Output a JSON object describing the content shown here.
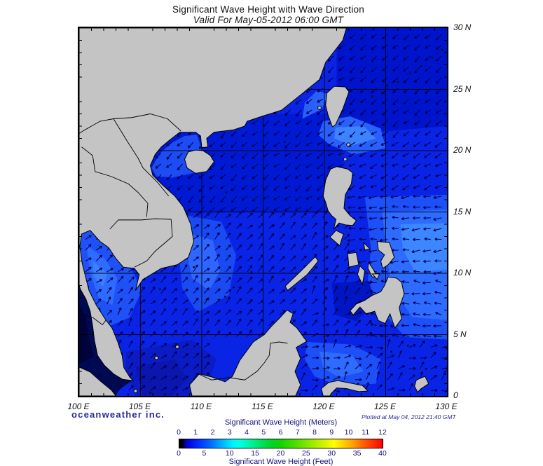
{
  "header": {
    "title": "Significant Wave Height with Wave Direction",
    "valid_time": "Valid For May-05-2012 06:00 GMT"
  },
  "branding": {
    "logo_text": "oceanweather inc.",
    "plotted": "Plotted at May 04, 2012 21:40 GMT"
  },
  "legend": {
    "title_meters": "Significant Wave Height (Meters)",
    "title_feet": "Significant Wave Height (Feet)",
    "ticks_meters": [
      "0",
      "1",
      "2",
      "3",
      "4",
      "5",
      "6",
      "7",
      "8",
      "9",
      "10",
      "11",
      "12"
    ],
    "ticks_feet": [
      "0",
      "5",
      "10",
      "15",
      "20",
      "25",
      "30",
      "35",
      "40"
    ]
  },
  "chart_data": {
    "type": "map",
    "title": "Significant Wave Height with Wave Direction",
    "valid_time": "May-05-2012 06:00 GMT",
    "plotted_time": "May 04, 2012 21:40 GMT",
    "extent": {
      "lon_min": 100,
      "lon_max": 130,
      "lat_min": 0,
      "lat_max": 30
    },
    "grid_interval_deg": 5,
    "x_ticks": [
      "100 E",
      "105 E",
      "110 E",
      "115 E",
      "120 E",
      "125 E",
      "130 E"
    ],
    "y_ticks": [
      "30 N",
      "25 N",
      "20 N",
      "15 N",
      "10 N",
      "5 N",
      "0"
    ],
    "colors": {
      "land": "#c4c4c4",
      "coast": "#000000",
      "sea_base": "#0a24e6",
      "grid": "#000000",
      "arrow": "#000058",
      "frame": "#000000",
      "navy_text": "#12127a"
    },
    "colorbar": {
      "meters_range": [
        0,
        12
      ],
      "feet_range": [
        0,
        40
      ],
      "stops": [
        "#000000",
        "#0000bb",
        "#0033ff",
        "#0099ff",
        "#00eeff",
        "#00ee88",
        "#11d400",
        "#77e600",
        "#ffff00",
        "#ff9900",
        "#ff3300",
        "#ff0000"
      ]
    },
    "sea_patches": [
      {
        "c": "#0014cc",
        "p": [
          121,
          30,
          130,
          30,
          130,
          22,
          124,
          21.5,
          121,
          23
        ]
      },
      {
        "c": "#001ad4",
        "p": [
          105,
          15,
          121.5,
          15,
          121.5,
          23,
          105,
          23
        ]
      },
      {
        "c": "#1c4cf2",
        "p": [
          105.9,
          18.6,
          106.6,
          19.8,
          107.5,
          20.6,
          108.6,
          21.2,
          109.6,
          21.3,
          109.9,
          20.4,
          110.3,
          19.0,
          109.4,
          18.2,
          107.6,
          17.8,
          106.3,
          17.9
        ]
      },
      {
        "c": "#1a4af2",
        "p": [
          108.3,
          14.8,
          111.6,
          14.2,
          112.8,
          11.5,
          112.2,
          8.2,
          109.6,
          6.8,
          108.4,
          8.8,
          108.1,
          12
        ]
      },
      {
        "c": "#2e66ff",
        "p": [
          109.2,
          13.2,
          110.9,
          12.7,
          111.5,
          10.2,
          110.6,
          8.6,
          109.2,
          9.6,
          108.8,
          11.6
        ]
      },
      {
        "c": "#1e52f6",
        "p": [
          100,
          13.3,
          100.9,
          13.5,
          102.3,
          12.5,
          103.4,
          11.1,
          104.4,
          10.1,
          105.1,
          8.6,
          104.1,
          6.4,
          102.5,
          5.7,
          101.5,
          6.9,
          100.8,
          8.6,
          100.2,
          10.6,
          100,
          11.6
        ]
      },
      {
        "c": "#2e6bff",
        "p": [
          100.6,
          12.3,
          102.1,
          11.2,
          103.1,
          9.6,
          102.7,
          7.4,
          101.6,
          8.0,
          100.9,
          10.0
        ]
      },
      {
        "c": "#3c80ff",
        "p": [
          101.1,
          11.0,
          102.3,
          10.0,
          101.95,
          8.9,
          101.2,
          9.7
        ]
      },
      {
        "c": "#2a60fa",
        "p": [
          119.9,
          22.4,
          122.1,
          22.8,
          124.6,
          21.8,
          125.0,
          20.2,
          122.4,
          19.7,
          120.4,
          20.5,
          119.5,
          21.3
        ]
      },
      {
        "c": "#3c83ff",
        "p": [
          120.9,
          21.9,
          123.2,
          22.0,
          124.2,
          21.0,
          122.2,
          20.4,
          120.8,
          21.0
        ]
      },
      {
        "c": "#2a60fa",
        "p": [
          118.2,
          22.6,
          119.8,
          23.4,
          120.3,
          24.6,
          119.4,
          24.9,
          118.4,
          23.9
        ]
      },
      {
        "c": "#1d50f6",
        "p": [
          123.3,
          16.2,
          130,
          16.4,
          130,
          4.6,
          126.6,
          4.8,
          124.6,
          7.0,
          123.5,
          9.0,
          123.8,
          12.0
        ]
      },
      {
        "c": "#2e6bff",
        "p": [
          124.7,
          15.0,
          130,
          15.2,
          130,
          6.2,
          127.2,
          6.4,
          125.4,
          9.0,
          125.0,
          12.5
        ]
      },
      {
        "c": "#3c86ff",
        "p": [
          126.2,
          14.0,
          130,
          14.1,
          130,
          10.3,
          127.4,
          10.1,
          126.4,
          11.9
        ]
      },
      {
        "c": "#1d50f6",
        "p": [
          118.6,
          4.4,
          122.2,
          4.2,
          124.6,
          3.0,
          124.2,
          1.0,
          121.2,
          0.8,
          119.2,
          1.6,
          118.4,
          3.0
        ]
      },
      {
        "c": "#2e6bff",
        "p": [
          119.6,
          3.6,
          122.2,
          3.4,
          123.2,
          2.0,
          121.2,
          1.5,
          119.9,
          2.3
        ]
      },
      {
        "c": "#0016c2",
        "p": [
          120.6,
          9.2,
          123.6,
          9.4,
          124.2,
          7.6,
          122.6,
          6.1,
          120.9,
          6.6
        ]
      },
      {
        "c": "#0b1cc4",
        "p": [
          103.8,
          3.6,
          109.2,
          4.6,
          111.2,
          3.0,
          110.2,
          0,
          104.6,
          0,
          103.8,
          1.9
        ]
      },
      {
        "c": "#0a16ae",
        "p": [
          104.6,
          2.4,
          107.8,
          3.0,
          108.8,
          1.4,
          107.6,
          0,
          105.2,
          0
        ]
      },
      {
        "c": "#000a52",
        "p": [
          100,
          8.8,
          100.6,
          7.9,
          101.1,
          6.5,
          101.3,
          5.1,
          101.6,
          3.7,
          102.3,
          2.5,
          103.3,
          1.5,
          104.3,
          1.25,
          103.4,
          0.6,
          102.9,
          0,
          100,
          0
        ]
      },
      {
        "c": "#000338",
        "p": [
          100,
          7.5,
          100.5,
          6.5,
          100.8,
          4.8,
          101.2,
          3.2,
          100,
          2.6
        ]
      }
    ],
    "land": [
      [
        100,
        30,
        121.8,
        30,
        121.5,
        29.0,
        120.1,
        27.2,
        119.6,
        25.8,
        118.0,
        24.5,
        116.5,
        23.3,
        114.9,
        22.8,
        113.7,
        22.4,
        113.5,
        22.0,
        112.6,
        21.7,
        111.0,
        21.5,
        110.4,
        21.0,
        110.5,
        20.3,
        110.0,
        20.25,
        109.9,
        21.2,
        109.5,
        21.5,
        108.2,
        21.5,
        107.3,
        20.8,
        106.7,
        20.3,
        106.2,
        19.7,
        105.8,
        18.8,
        106.0,
        18.0,
        106.8,
        17.2,
        107.8,
        16.3,
        108.5,
        15.4,
        109.1,
        14.0,
        109.35,
        12.6,
        108.9,
        11.3,
        108.0,
        10.7,
        106.7,
        10.4,
        105.2,
        9.5,
        104.6,
        8.6,
        104.9,
        9.9,
        104.5,
        10.4,
        103.6,
        10.5,
        103.0,
        11.2,
        102.4,
        12.1,
        101.7,
        12.6,
        100.9,
        13.5,
        100.2,
        13.2,
        100.05,
        12.2,
        100.25,
        10.8,
        100.55,
        9.6,
        100.8,
        8.6,
        101.4,
        7.4,
        102.1,
        6.3,
        102.7,
        5.5,
        103.15,
        4.4,
        103.5,
        3.3,
        103.65,
        2.3,
        104.15,
        1.5,
        104.4,
        1.25,
        103.55,
        1.35,
        102.8,
        1.8,
        102.05,
        2.5,
        101.5,
        3.3,
        101.25,
        4.5,
        101.1,
        5.7,
        100.9,
        6.9,
        100.55,
        7.9,
        100.1,
        8.7,
        100,
        9.0
      ],
      [
        108.6,
        19.3,
        108.9,
        19.9,
        109.5,
        20.05,
        110.1,
        20.0,
        110.7,
        19.6,
        111.0,
        19.1,
        110.4,
        18.3,
        109.5,
        18.15,
        108.8,
        18.6
      ],
      [
        120.1,
        23.7,
        120.2,
        24.7,
        120.8,
        25.25,
        121.7,
        25.2,
        122.0,
        24.8,
        121.5,
        23.4,
        120.9,
        22.1,
        120.65,
        21.95,
        120.3,
        22.9
      ],
      [
        119.9,
        16.3,
        120.1,
        17.6,
        120.5,
        18.5,
        121.0,
        18.7,
        121.9,
        18.5,
        122.3,
        18.2,
        122.2,
        17.3,
        121.7,
        16.4,
        121.6,
        15.3,
        122.1,
        14.7,
        122.6,
        14.3,
        122.3,
        13.9,
        121.7,
        13.95,
        121.2,
        14.1,
        120.75,
        13.6,
        120.95,
        14.4,
        120.6,
        14.7,
        120.3,
        15.1,
        120.1,
        15.8
      ],
      [
        120.95,
        13.5,
        121.55,
        13.2,
        121.25,
        12.25,
        120.45,
        12.95
      ],
      [
        117.0,
        8.6,
        118.6,
        9.9,
        119.5,
        11.0,
        119.25,
        11.35,
        118.2,
        10.3,
        116.8,
        8.95
      ],
      [
        121.9,
        11.6,
        122.6,
        11.7,
        122.8,
        10.7,
        122.0,
        10.5
      ],
      [
        122.9,
        10.6,
        123.3,
        10.2,
        123.1,
        9.1,
        122.7,
        9.9
      ],
      [
        123.6,
        10.9,
        124.0,
        10.3,
        124.3,
        9.7,
        123.9,
        9.7,
        123.55,
        10.4
      ],
      [
        123.9,
        9.95,
        124.5,
        9.95,
        124.3,
        9.5
      ],
      [
        123.2,
        12.5,
        123.7,
        12.0,
        123.3,
        11.9
      ],
      [
        124.3,
        12.6,
        125.3,
        12.5,
        125.7,
        11.3,
        125.2,
        10.7,
        124.75,
        10.4,
        124.6,
        11.0,
        124.9,
        11.5,
        124.4,
        11.9
      ],
      [
        122.1,
        6.95,
        122.6,
        7.5,
        123.3,
        7.8,
        123.9,
        8.2,
        124.6,
        8.5,
        124.9,
        9.0,
        125.2,
        9.7,
        125.9,
        9.6,
        126.3,
        9.25,
        126.5,
        8.3,
        126.1,
        7.2,
        126.3,
        6.3,
        125.75,
        5.55,
        125.35,
        6.7,
        124.95,
        5.9,
        124.4,
        6.15,
        124.1,
        6.9,
        123.4,
        6.7,
        122.9,
        7.25,
        122.35,
        6.6
      ],
      [
        109.2,
        0,
        109.0,
        0.9,
        109.8,
        1.8,
        110.8,
        1.55,
        111.9,
        1.15,
        112.5,
        1.6,
        113.1,
        2.9,
        114.2,
        4.4,
        115.1,
        5.0,
        115.7,
        5.7,
        116.3,
        6.3,
        116.95,
        7.0,
        117.45,
        6.7,
        117.2,
        6.0,
        117.75,
        5.55,
        118.55,
        4.45,
        117.7,
        3.95,
        118.05,
        3.05,
        117.6,
        2.0,
        118.05,
        0.9,
        117.65,
        0
      ],
      [
        100,
        2.35,
        100.9,
        1.95,
        101.8,
        1.15,
        102.6,
        0.5,
        103.0,
        0,
        100,
        0
      ],
      [
        119.9,
        0,
        119.75,
        0.6,
        120.35,
        1.1,
        121.1,
        1.25,
        122.1,
        1.05,
        123.1,
        0.85,
        123.55,
        0.4,
        122.8,
        0.35,
        121.8,
        0.6,
        121.0,
        0.65,
        120.55,
        0.2,
        120.45,
        0
      ],
      [
        127.5,
        1.3,
        128.2,
        1.6,
        128.5,
        1.0,
        127.9,
        0.6,
        127.6,
        0.3,
        127.35,
        0.8
      ]
    ],
    "borders": [
      [
        108.3,
        21.6,
        107.2,
        22.6,
        105.8,
        23.0,
        104.3,
        22.7,
        102.8,
        22.6,
        101.7,
        22.4,
        100.3,
        21.6,
        100,
        21.4
      ],
      [
        102.8,
        22.6,
        103.9,
        20.8,
        104.8,
        19.4,
        105.2,
        18.6,
        106.4,
        17.4,
        107.3,
        16.3
      ],
      [
        100.2,
        20.3,
        101.1,
        19.6,
        101.3,
        18.3,
        102.6,
        17.9,
        104.0,
        17.3,
        104.8,
        16.6,
        105.6,
        15.7,
        105.5,
        14.6
      ],
      [
        102.5,
        13.6,
        103.2,
        14.35,
        105.1,
        14.35,
        106.2,
        14.45,
        107.5,
        14.4
      ],
      [
        107.5,
        14.4,
        107.6,
        13.0,
        106.2,
        11.8,
        105.5,
        11.0,
        104.5,
        10.5
      ],
      [
        100.3,
        6.6,
        101.1,
        6.4,
        101.9,
        5.8,
        102.2,
        6.2
      ],
      [
        109.7,
        1.8,
        110.8,
        1.3,
        112.2,
        1.5,
        113.5,
        1.3,
        114.5,
        2.0,
        115.1,
        2.7,
        115.5,
        3.3,
        115.6,
        4.3,
        116.3,
        4.4,
        117.0,
        4.3
      ]
    ],
    "islets_gray": [
      [
        108.0,
        4.0
      ],
      [
        106.3,
        3.1
      ],
      [
        121.95,
        20.5
      ],
      [
        121.7,
        19.3
      ],
      [
        119.6,
        23.5
      ],
      [
        104.6,
        0.4
      ]
    ],
    "islets_black": [
      [
        125.1,
        25.3
      ],
      [
        126.0,
        25.6
      ],
      [
        127.0,
        26.3
      ],
      [
        127.9,
        26.9
      ],
      [
        128.8,
        27.6
      ],
      [
        129.6,
        28.2
      ],
      [
        123.9,
        24.4
      ],
      [
        124.7,
        24.7
      ],
      [
        112.0,
        16.6
      ],
      [
        116.75,
        20.7
      ],
      [
        111.9,
        8.1
      ],
      [
        112.6,
        8.85
      ],
      [
        110.4,
        7.85
      ],
      [
        114.05,
        10.1
      ],
      [
        109.35,
        10.5
      ],
      [
        106.6,
        8.7
      ],
      [
        115.8,
        9.7
      ],
      [
        113.9,
        7.6
      ],
      [
        126.8,
        4.1
      ],
      [
        125.45,
        3.6
      ],
      [
        128.3,
        2.2
      ],
      [
        102.5,
        1.2
      ],
      [
        103.3,
        0.9
      ],
      [
        103.9,
        1.05
      ],
      [
        105.8,
        0.25
      ]
    ],
    "wave_field": [
      {
        "b": [
          100,
          0,
          104.4,
          8.8
        ],
        "a": 55,
        "j": 18
      },
      {
        "b": [
          100,
          5.5,
          105.6,
          13.9
        ],
        "a": 38,
        "j": 14
      },
      {
        "b": [
          103,
          0,
          110.5,
          5.5
        ],
        "a": 42,
        "j": 16
      },
      {
        "b": [
          117.6,
          0,
          130,
          4.8
        ],
        "a": 32,
        "j": 45
      },
      {
        "b": [
          118.4,
          4.8,
          123.4,
          9.6
        ],
        "a": 40,
        "j": 35
      },
      {
        "b": [
          122.4,
          4.8,
          130,
          9.9
        ],
        "a": 172,
        "j": 14
      },
      {
        "b": [
          122.4,
          9.9,
          130,
          16.6
        ],
        "a": 184,
        "j": 10
      },
      {
        "b": [
          121.3,
          16.6,
          130,
          21.2
        ],
        "a": 207,
        "j": 12
      },
      {
        "b": [
          114,
          21.2,
          130,
          30
        ],
        "a": 220,
        "j": 12
      },
      {
        "b": [
          104,
          14.8,
          114,
          23.5
        ],
        "a": 224,
        "j": 12
      },
      {
        "b": [
          114,
          14.8,
          121.3,
          21.2
        ],
        "a": 216,
        "j": 12
      },
      {
        "b": [
          100,
          4.8,
          122.4,
          14.8
        ],
        "a": 46,
        "j": 14
      },
      {
        "b": [
          100,
          23.5,
          114,
          30
        ],
        "a": 225,
        "j": 10
      }
    ]
  }
}
